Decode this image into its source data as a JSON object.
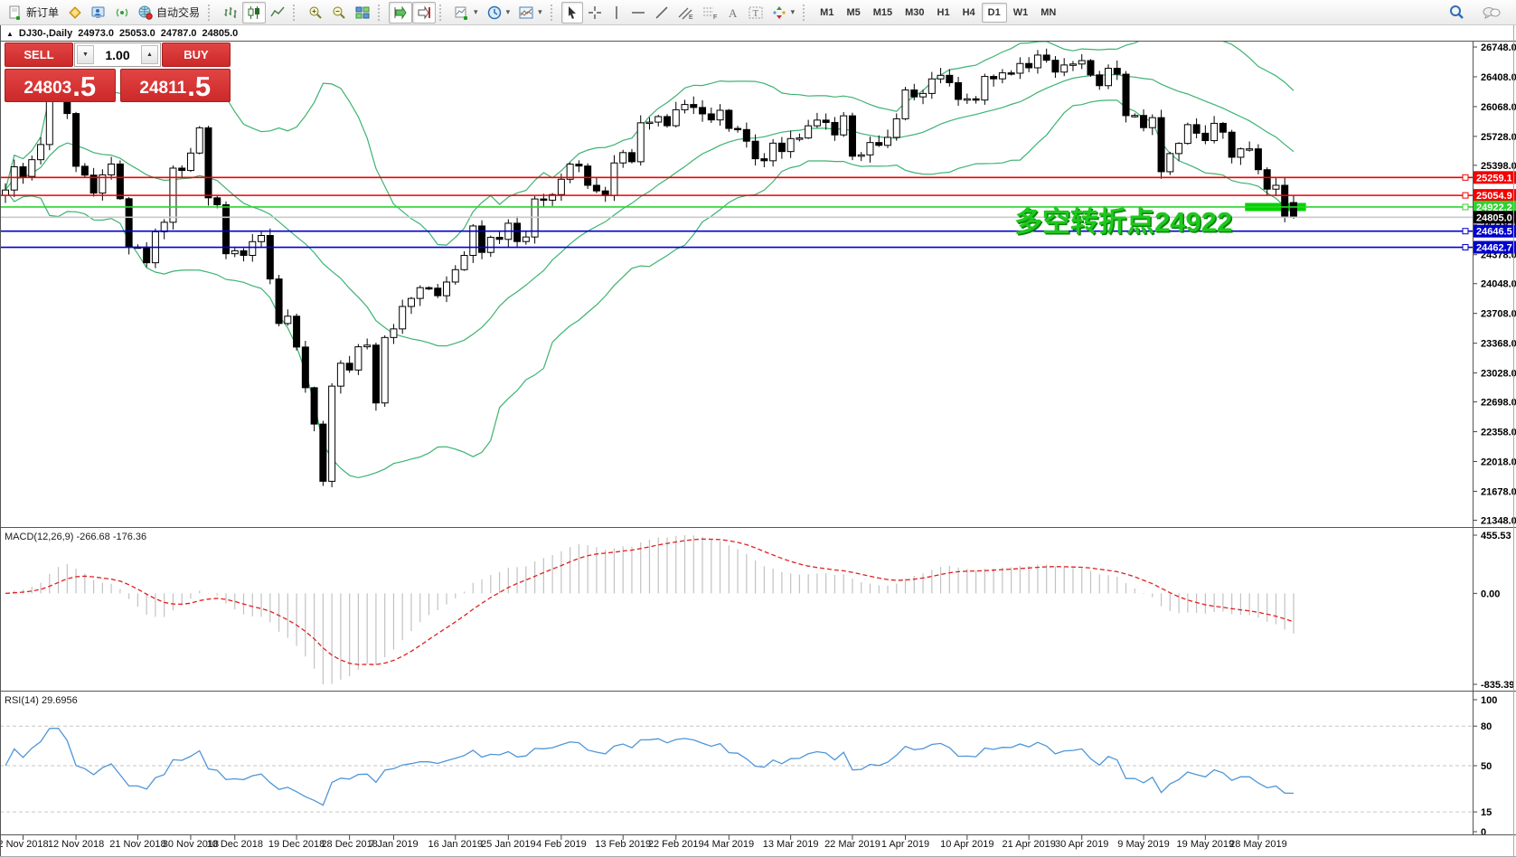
{
  "toolbar": {
    "new_order_label": "新订单",
    "auto_trade_label": "自动交易",
    "timeframes": [
      "M1",
      "M5",
      "M15",
      "M30",
      "H1",
      "H4",
      "D1",
      "W1",
      "MN"
    ],
    "active_timeframe": "D1"
  },
  "chart": {
    "title": {
      "collapse_marker": "▲",
      "symbol": "DJ30-,Daily",
      "open": "24973.0",
      "high": "25053.0",
      "low": "24787.0",
      "close": "24805.0"
    },
    "trade_panel": {
      "sell_label": "SELL",
      "buy_label": "BUY",
      "volume": "1.00",
      "spin_down": "▼",
      "spin_up": "▲",
      "sell_big": "24803",
      "sell_sup": ".5",
      "buy_big": "24811",
      "buy_sup": ".5"
    },
    "annotation": {
      "text": "多空转折点24922",
      "color": "#1dc81d"
    },
    "price_axis_ticks": [
      "26748.0",
      "26408.0",
      "26068.0",
      "25728.0",
      "25398.0",
      "25058.0",
      "24718.0",
      "24378.0",
      "24048.0",
      "23708.0",
      "23368.0",
      "23028.0",
      "22698.0",
      "22358.0",
      "22018.0",
      "21678.0",
      "21348.0"
    ],
    "hlines": [
      {
        "value": 25259.1,
        "label": "25259.1",
        "color": "#f20000"
      },
      {
        "value": 25054.9,
        "label": "25054.9",
        "color": "#f20000"
      },
      {
        "value": 24922.2,
        "label": "24922.2",
        "color": "#2ed32e"
      },
      {
        "value": 24646.5,
        "label": "24646.5",
        "color": "#0000cd"
      },
      {
        "value": 24462.7,
        "label": "24462.7",
        "color": "#0000cd"
      }
    ],
    "current_price": {
      "value": 24805.0,
      "label": "24805.0",
      "line_color": "#c9c9c9",
      "tag_color": "#000000"
    },
    "highlight": {
      "price": 24922.2,
      "bar_from": 140.5,
      "bar_to": 147.4,
      "color": "#00d300"
    },
    "bollinger": {
      "period": 20,
      "deviation": 2,
      "color": "#3cb371"
    },
    "closes": [
      25116,
      25381,
      25271,
      25462,
      25635,
      26180,
      26191,
      25989,
      25387,
      25286,
      25081,
      25289,
      25413,
      25017,
      24466,
      24465,
      24286,
      24640,
      24748,
      25366,
      25339,
      25538,
      25826,
      25027,
      24948,
      24389,
      24423,
      24370,
      24527,
      24597,
      24101,
      23593,
      23676,
      23324,
      22860,
      22445,
      21792,
      22878,
      23139,
      23062,
      23327,
      23346,
      22686,
      23433,
      23531,
      23787,
      23879,
      24002,
      23996,
      23910,
      24066,
      24207,
      24370,
      24706,
      24404,
      24576,
      24553,
      24737,
      24528,
      24580,
      25014,
      25000,
      25064,
      25239,
      25411,
      25390,
      25170,
      25106,
      25053,
      25425,
      25543,
      25439,
      25883,
      25891,
      25954,
      25850,
      26032,
      26092,
      26058,
      25985,
      25916,
      26026,
      25819,
      25806,
      25673,
      25473,
      25450,
      25651,
      25555,
      25703,
      25710,
      25849,
      25914,
      25887,
      25745,
      25963,
      25502,
      25517,
      25658,
      25626,
      25717,
      25929,
      26258,
      26179,
      26218,
      26384,
      26425,
      26341,
      26150,
      26157,
      26143,
      26412,
      26385,
      26453,
      26449,
      26560,
      26511,
      26656,
      26597,
      26462,
      26543,
      26554,
      26593,
      26430,
      26307,
      26505,
      26438,
      25965,
      25967,
      25828,
      25942,
      25325,
      25532,
      25648,
      25862,
      25764,
      25680,
      25877,
      25776,
      25490,
      25586,
      25586,
      25348,
      25126,
      25170,
      24815,
      24805
    ],
    "last_bar": {
      "open": 24973.0,
      "high": 25053.0,
      "low": 24787.0,
      "close": 24805.0
    },
    "date_labels": [
      {
        "text": "2 Nov 2018",
        "bar": 2
      },
      {
        "text": "12 Nov 2018",
        "bar": 8
      },
      {
        "text": "21 Nov 2018",
        "bar": 15
      },
      {
        "text": "30 Nov 2018",
        "bar": 21
      },
      {
        "text": "10 Dec 2018",
        "bar": 26
      },
      {
        "text": "19 Dec 2018",
        "bar": 33
      },
      {
        "text": "28 Dec 2018",
        "bar": 39
      },
      {
        "text": "7 Jan 2019",
        "bar": 44
      },
      {
        "text": "16 Jan 2019",
        "bar": 51
      },
      {
        "text": "25 Jan 2019",
        "bar": 57
      },
      {
        "text": "4 Feb 2019",
        "bar": 63
      },
      {
        "text": "13 Feb 2019",
        "bar": 70
      },
      {
        "text": "22 Feb 2019",
        "bar": 76
      },
      {
        "text": "4 Mar 2019",
        "bar": 82
      },
      {
        "text": "13 Mar 2019",
        "bar": 89
      },
      {
        "text": "22 Mar 2019",
        "bar": 96
      },
      {
        "text": "1 Apr 2019",
        "bar": 102
      },
      {
        "text": "10 Apr 2019",
        "bar": 109
      },
      {
        "text": "21 Apr 2019",
        "bar": 116
      },
      {
        "text": "30 Apr 2019",
        "bar": 122
      },
      {
        "text": "9 May 2019",
        "bar": 129
      },
      {
        "text": "19 May 2019",
        "bar": 136
      },
      {
        "text": "28 May 2019",
        "bar": 142
      }
    ]
  },
  "macd": {
    "label": "MACD(12,26,9) -266.68 -176.36",
    "fast": 12,
    "slow": 26,
    "signal": 9,
    "axis_max": "455.53",
    "axis_zero": "0.00",
    "axis_min": "-835.39",
    "hist_color": "#c2c2c2",
    "signal_color": "#e01f1f"
  },
  "rsi": {
    "label": "RSI(14) 29.6956",
    "period": 14,
    "axis_ticks": [
      100,
      80,
      50,
      15,
      0
    ],
    "levels": [
      80,
      50,
      15
    ],
    "color": "#4f96d8"
  }
}
